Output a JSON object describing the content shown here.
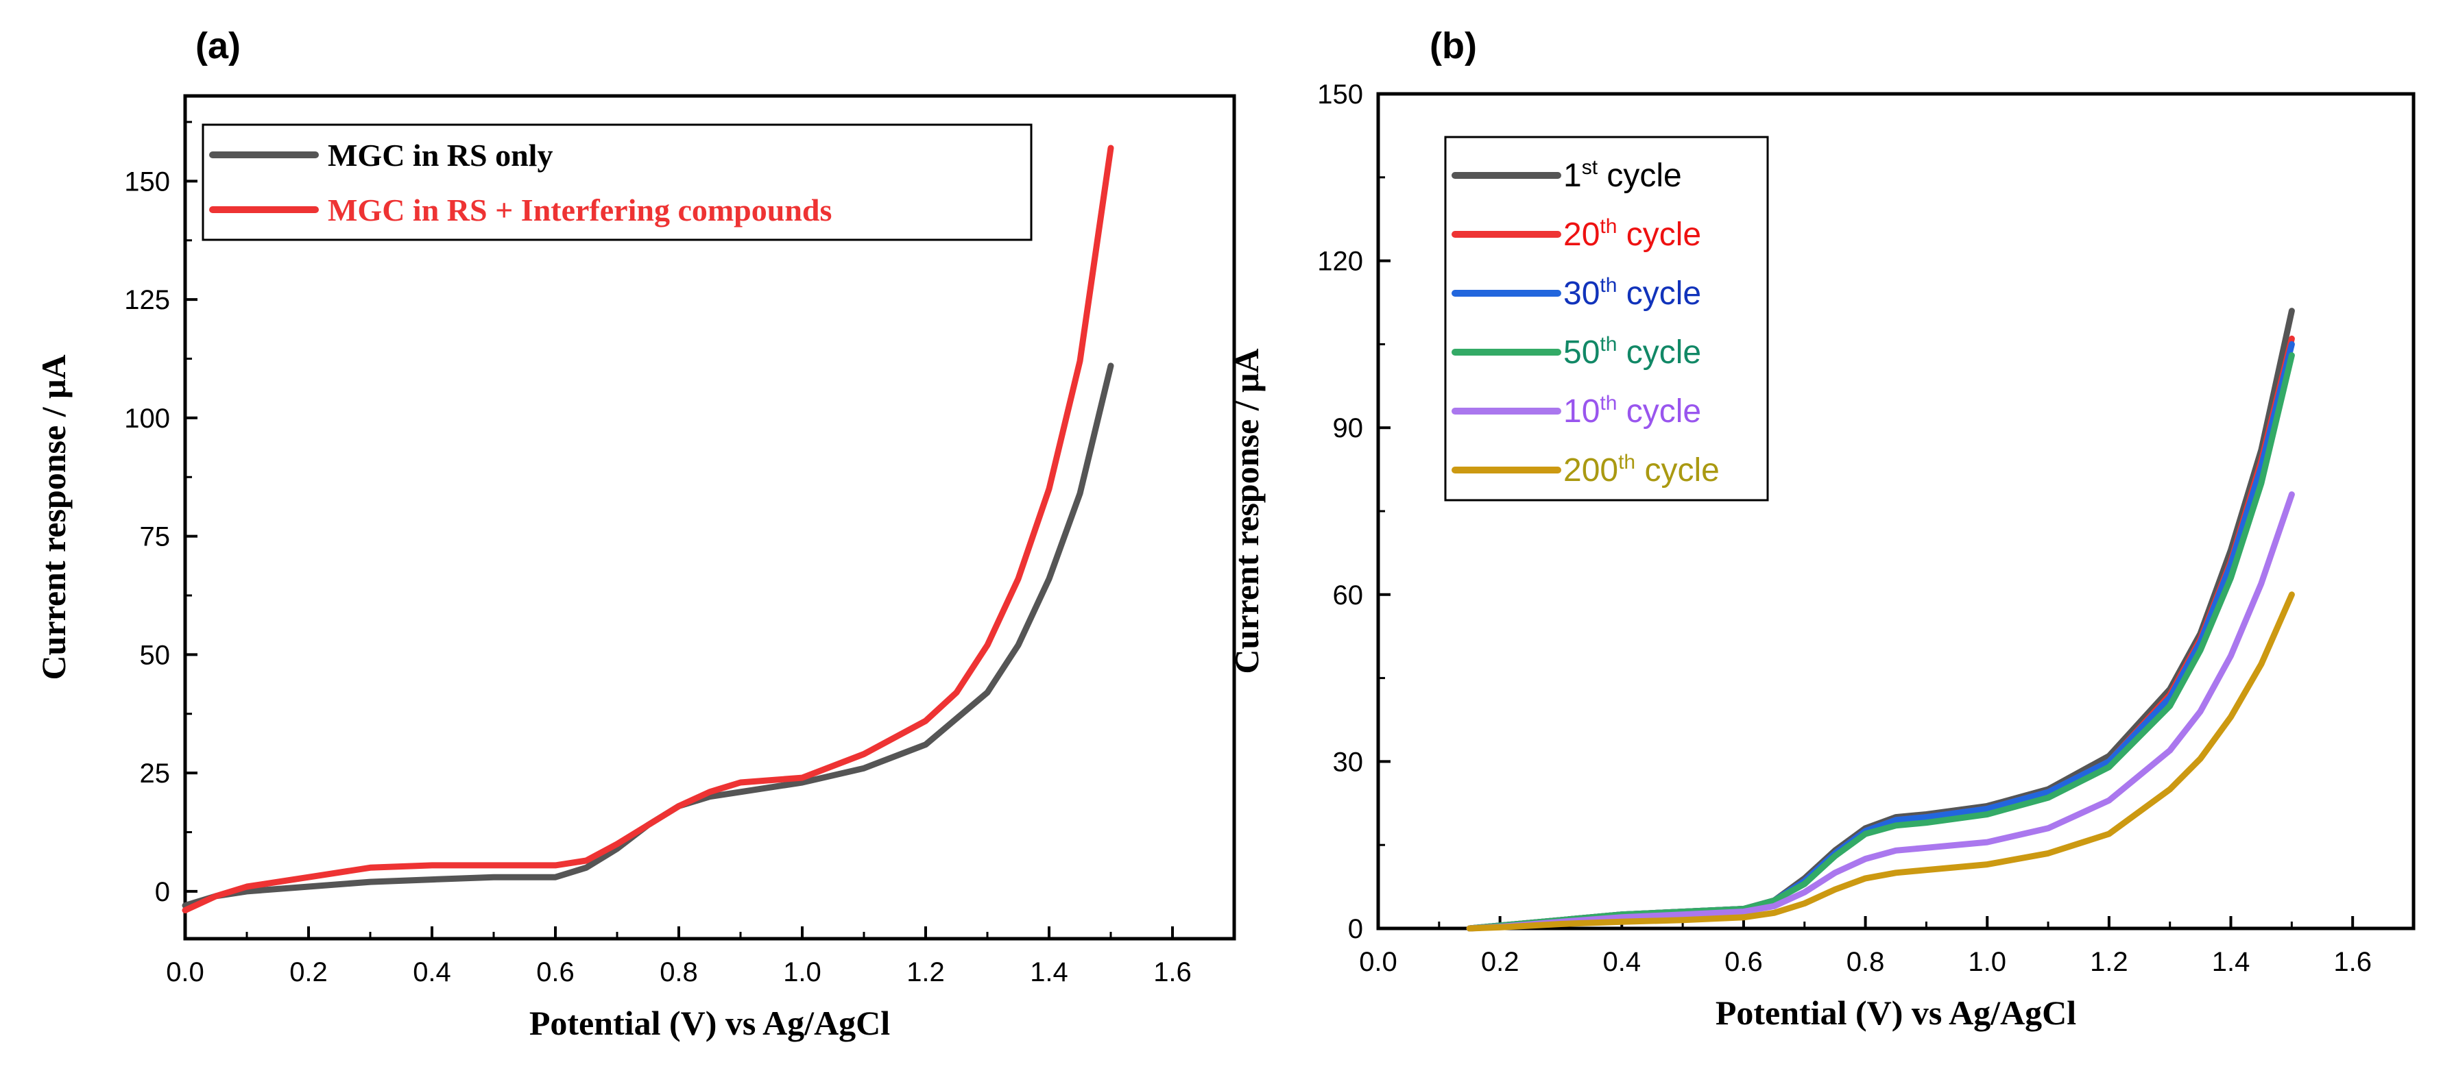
{
  "panels": {
    "a": {
      "label": "(a)"
    },
    "b": {
      "label": "(b)"
    }
  },
  "chart_data": [
    {
      "id": "a",
      "type": "line",
      "xlabel": "Potential (V) vs Ag/AgCl",
      "ylabel": "Current response / μA",
      "xlim": [
        0.0,
        1.7
      ],
      "ylim": [
        -10,
        168
      ],
      "xticks": [
        "0.0",
        "0.2",
        "0.4",
        "0.6",
        "0.8",
        "1.0",
        "1.2",
        "1.4",
        "1.6"
      ],
      "xtick_values": [
        0.0,
        0.2,
        0.4,
        0.6,
        0.8,
        1.0,
        1.2,
        1.4,
        1.6
      ],
      "yticks": [
        "0",
        "25",
        "50",
        "75",
        "100",
        "125",
        "150"
      ],
      "ytick_values": [
        0,
        25,
        50,
        75,
        100,
        125,
        150
      ],
      "grid": false,
      "legend_position": "top-left",
      "series": [
        {
          "name": "MGC in RS only",
          "color": "#555555",
          "x": [
            0.0,
            0.05,
            0.1,
            0.2,
            0.3,
            0.4,
            0.5,
            0.6,
            0.65,
            0.7,
            0.75,
            0.8,
            0.85,
            0.9,
            1.0,
            1.1,
            1.2,
            1.3,
            1.35,
            1.4,
            1.45,
            1.5
          ],
          "y": [
            -3,
            -1,
            0,
            1,
            2,
            2.5,
            3,
            3,
            5,
            9,
            14,
            18,
            20,
            21,
            23,
            26,
            31,
            42,
            52,
            66,
            84,
            111
          ]
        },
        {
          "name": "MGC in RS + Interfering compounds",
          "color": "#ee3333",
          "x": [
            0.0,
            0.05,
            0.1,
            0.2,
            0.3,
            0.4,
            0.5,
            0.6,
            0.65,
            0.7,
            0.75,
            0.8,
            0.85,
            0.9,
            1.0,
            1.1,
            1.2,
            1.25,
            1.3,
            1.35,
            1.4,
            1.45,
            1.5
          ],
          "y": [
            -4,
            -1,
            1,
            3,
            5,
            5.5,
            5.5,
            5.5,
            6.5,
            10,
            14,
            18,
            21,
            23,
            24,
            29,
            36,
            42,
            52,
            66,
            85,
            112,
            157
          ]
        }
      ]
    },
    {
      "id": "b",
      "type": "line",
      "xlabel": "Potential (V) vs Ag/AgCl",
      "ylabel": "Current response / μA",
      "xlim": [
        0.0,
        1.7
      ],
      "ylim": [
        0,
        150
      ],
      "xticks": [
        "0.0",
        "0.2",
        "0.4",
        "0.6",
        "0.8",
        "1.0",
        "1.2",
        "1.4",
        "1.6"
      ],
      "xtick_values": [
        0.0,
        0.2,
        0.4,
        0.6,
        0.8,
        1.0,
        1.2,
        1.4,
        1.6
      ],
      "yticks": [
        "0",
        "30",
        "60",
        "90",
        "120",
        "150"
      ],
      "ytick_values": [
        0,
        30,
        60,
        90,
        120,
        150
      ],
      "grid": false,
      "legend_position": "top-left",
      "x": [
        0.15,
        0.2,
        0.3,
        0.4,
        0.5,
        0.6,
        0.65,
        0.7,
        0.75,
        0.8,
        0.85,
        0.9,
        1.0,
        1.1,
        1.2,
        1.3,
        1.35,
        1.4,
        1.45,
        1.5
      ],
      "series": [
        {
          "name_prefix": "1",
          "name_sup": "st",
          "name_suffix": " cycle",
          "color": "#555555",
          "text_color": "#000000",
          "y": [
            0,
            0.5,
            1.5,
            2.5,
            3,
            3.5,
            5,
            9,
            14,
            18,
            20,
            20.5,
            22,
            25,
            31,
            43,
            53,
            68,
            86,
            111
          ]
        },
        {
          "name_prefix": "20",
          "name_sup": "th",
          "name_suffix": " cycle",
          "color": "#ee3333",
          "text_color": "#ee1111",
          "y": [
            0,
            0.5,
            1.5,
            2.5,
            3,
            3.5,
            5,
            8.5,
            13.5,
            17.5,
            19.5,
            20,
            21.5,
            24.5,
            30,
            42,
            52,
            66,
            84,
            106
          ]
        },
        {
          "name_prefix": "30",
          "name_sup": "th",
          "name_suffix": " cycle",
          "color": "#2266dd",
          "text_color": "#1133bb",
          "y": [
            0,
            0.5,
            1.5,
            2.5,
            3,
            3.5,
            5,
            8.5,
            13.5,
            17.5,
            19.5,
            20,
            21.5,
            24.5,
            30,
            41.5,
            51.5,
            65.5,
            83,
            105
          ]
        },
        {
          "name_prefix": "50",
          "name_sup": "th",
          "name_suffix": " cycle",
          "color": "#33aa66",
          "text_color": "#118866",
          "y": [
            0,
            0.5,
            1.5,
            2.5,
            3,
            3.5,
            5,
            8,
            13,
            17,
            18.5,
            19,
            20.5,
            23.5,
            29,
            40,
            50,
            63,
            80,
            103
          ]
        },
        {
          "name_prefix": "10",
          "name_sup": "th",
          "name_suffix": " cycle",
          "color": "#aa77ee",
          "text_color": "#9955ee",
          "y": [
            0,
            0.3,
            1.2,
            2,
            2.5,
            3,
            4,
            6.5,
            10,
            12.5,
            14,
            14.5,
            15.5,
            18,
            23,
            32,
            39,
            49,
            62,
            78
          ]
        },
        {
          "name_prefix": "200",
          "name_sup": "th",
          "name_suffix": " cycle",
          "color": "#cc9911",
          "text_color": "#aa9911",
          "y": [
            0,
            0.2,
            0.8,
            1.2,
            1.5,
            2,
            2.8,
            4.5,
            7,
            9,
            10,
            10.5,
            11.5,
            13.5,
            17,
            25,
            30.5,
            38,
            47.5,
            60
          ]
        }
      ]
    }
  ]
}
